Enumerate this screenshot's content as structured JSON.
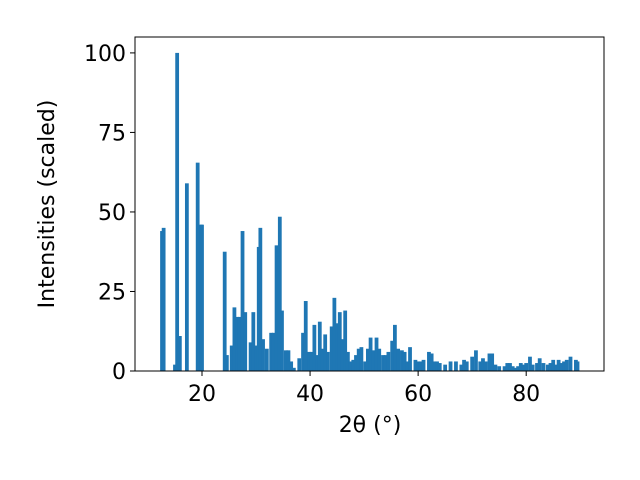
{
  "chart_data": {
    "type": "bar",
    "xlabel": "2θ (°)",
    "ylabel": "Intensities (scaled)",
    "color": "#1f77b4",
    "xlim": [
      7.6,
      94.4
    ],
    "ylim": [
      0,
      105
    ],
    "xticks": [
      20,
      40,
      60,
      80
    ],
    "yticks": [
      0,
      25,
      50,
      75,
      100
    ],
    "x": [
      12.6,
      12.9,
      15,
      15.4,
      15.9,
      17.2,
      19.2,
      19.8,
      20,
      24.2,
      24.6,
      25.5,
      26,
      26.5,
      27,
      27.5,
      28,
      29,
      29.5,
      30,
      30.5,
      30.8,
      31.3,
      32,
      32.8,
      33.3,
      33.8,
      34.4,
      34.8,
      35.5,
      36,
      36.5,
      37,
      38,
      38.7,
      39.2,
      39.8,
      40.3,
      40.8,
      41.3,
      41.8,
      42.3,
      42.8,
      43.3,
      44,
      44.5,
      45,
      45.5,
      46,
      46.5,
      47,
      47.5,
      48,
      48.5,
      49,
      49.5,
      50.2,
      50.7,
      51.2,
      51.7,
      52.3,
      52.8,
      53.5,
      54,
      54.5,
      55.2,
      55.7,
      56.3,
      57,
      57.5,
      58,
      58.5,
      59.5,
      60,
      60.5,
      61,
      62,
      62.5,
      63,
      63.5,
      64,
      65,
      66,
      67,
      68,
      68.5,
      69,
      70,
      70.7,
      71.5,
      72,
      72.5,
      73.2,
      73.7,
      74.3,
      75,
      76,
      76.5,
      77,
      77.5,
      78,
      78.5,
      79,
      79.5,
      80,
      80.7,
      81.2,
      82,
      82.5,
      83.2,
      84,
      84.5,
      85,
      85.5,
      86,
      86.5,
      87,
      87.5,
      88.2,
      89.2,
      89.5
    ],
    "values": [
      44,
      45,
      2,
      100,
      11,
      59,
      65.5,
      46,
      46,
      37.5,
      5,
      8,
      20,
      17,
      17,
      44,
      18.5,
      9,
      18.5,
      8,
      39,
      45,
      10,
      7,
      12,
      12,
      39.5,
      48.5,
      19,
      6.5,
      6.5,
      3,
      1,
      4,
      12,
      22,
      6,
      6,
      14.5,
      5,
      15.5,
      7,
      11.5,
      6,
      14,
      23,
      15,
      18.5,
      10,
      19,
      6,
      3,
      3.5,
      5,
      7,
      7.5,
      3,
      7,
      10.5,
      6.5,
      10.5,
      7,
      5,
      5,
      6,
      9.5,
      14.5,
      7,
      6.5,
      6,
      3,
      7.5,
      3.5,
      3,
      3,
      3.5,
      6,
      5.5,
      3,
      3,
      2.5,
      2,
      3,
      3,
      2,
      3.5,
      3,
      4.5,
      6.5,
      3,
      4,
      3,
      5.5,
      5.5,
      2,
      1.5,
      1.5,
      2.5,
      2.5,
      1.5,
      1,
      1.5,
      2.5,
      2,
      2.5,
      4.5,
      2,
      2.5,
      4,
      2.5,
      2,
      2.5,
      3.5,
      2,
      3.5,
      2.5,
      3,
      3.5,
      4.5,
      3.5,
      3
    ]
  }
}
